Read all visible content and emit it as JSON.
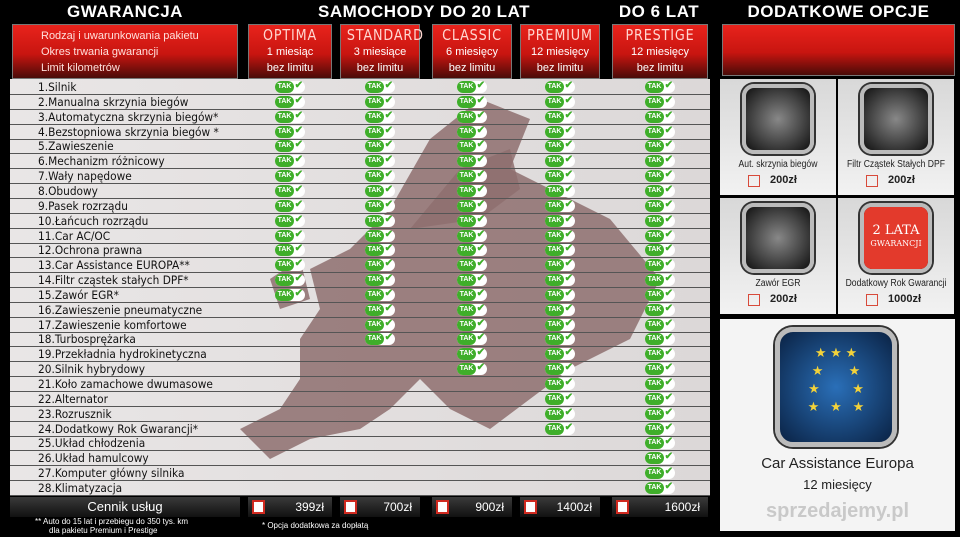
{
  "header": {
    "guarantee": "GWARANCJA",
    "cars20": "SAMOCHODY DO 20 LAT",
    "cars6": "DO 6 LAT",
    "extras": "DODATKOWE OPCJE"
  },
  "legend": [
    "Rodzaj i uwarunkowania pakietu",
    "Okres trwania gwarancji",
    "Limit kilometrów"
  ],
  "plans": [
    {
      "name": "OPTIMA",
      "period": "1 miesiąc",
      "limit": "bez limitu",
      "price": "399zł"
    },
    {
      "name": "STANDARD",
      "period": "3 miesiące",
      "limit": "bez limitu",
      "price": "700zł"
    },
    {
      "name": "CLASSIC",
      "period": "6 miesięcy",
      "limit": "bez limitu",
      "price": "900zł"
    },
    {
      "name": "PREMIUM",
      "period": "12 miesięcy",
      "limit": "bez limitu",
      "price": "1400zł"
    },
    {
      "name": "PRESTIGE",
      "period": "12 miesięcy",
      "limit": "bez limitu",
      "price": "1600zł"
    }
  ],
  "tak_label": "TAK",
  "items": [
    {
      "label": "1.Silnik",
      "cov": [
        1,
        1,
        1,
        1,
        1
      ]
    },
    {
      "label": "2.Manualna skrzynia biegów",
      "cov": [
        1,
        1,
        1,
        1,
        1
      ]
    },
    {
      "label": "3.Automatyczna skrzynia biegów*",
      "cov": [
        1,
        1,
        1,
        1,
        1
      ]
    },
    {
      "label": "4.Bezstopniowa skrzynia biegów *",
      "cov": [
        1,
        1,
        1,
        1,
        1
      ]
    },
    {
      "label": "5.Zawieszenie",
      "cov": [
        1,
        1,
        1,
        1,
        1
      ]
    },
    {
      "label": "6.Mechanizm różnicowy",
      "cov": [
        1,
        1,
        1,
        1,
        1
      ]
    },
    {
      "label": "7.Wały napędowe",
      "cov": [
        1,
        1,
        1,
        1,
        1
      ]
    },
    {
      "label": "8.Obudowy",
      "cov": [
        1,
        1,
        1,
        1,
        1
      ]
    },
    {
      "label": "9.Pasek rozrządu",
      "cov": [
        1,
        1,
        1,
        1,
        1
      ]
    },
    {
      "label": "10.Łańcuch rozrządu",
      "cov": [
        1,
        1,
        1,
        1,
        1
      ]
    },
    {
      "label": "11.Car AC/OC",
      "cov": [
        1,
        1,
        1,
        1,
        1
      ]
    },
    {
      "label": "12.Ochrona prawna",
      "cov": [
        1,
        1,
        1,
        1,
        1
      ]
    },
    {
      "label": "13.Car Assistance EUROPA**",
      "cov": [
        1,
        1,
        1,
        1,
        1
      ]
    },
    {
      "label": "14.Filtr cząstek stałych DPF*",
      "cov": [
        1,
        1,
        1,
        1,
        1
      ]
    },
    {
      "label": "15.Zawór EGR*",
      "cov": [
        1,
        1,
        1,
        1,
        1
      ]
    },
    {
      "label": "16.Zawieszenie pneumatyczne",
      "cov": [
        0,
        1,
        1,
        1,
        1
      ]
    },
    {
      "label": "17.Zawieszenie komfortowe",
      "cov": [
        0,
        1,
        1,
        1,
        1
      ]
    },
    {
      "label": "18.Turbosprężarka",
      "cov": [
        0,
        1,
        1,
        1,
        1
      ]
    },
    {
      "label": "19.Przekładnia hydrokinetyczna",
      "cov": [
        0,
        0,
        1,
        1,
        1
      ]
    },
    {
      "label": "20.Silnik hybrydowy",
      "cov": [
        0,
        0,
        1,
        1,
        1
      ]
    },
    {
      "label": "21.Koło zamachowe dwumasowe",
      "cov": [
        0,
        0,
        0,
        1,
        1
      ]
    },
    {
      "label": "22.Alternator",
      "cov": [
        0,
        0,
        0,
        1,
        1
      ]
    },
    {
      "label": "23.Rozrusznik",
      "cov": [
        0,
        0,
        0,
        1,
        1
      ]
    },
    {
      "label": "24.Dodatkowy Rok Gwarancji*",
      "cov": [
        0,
        0,
        0,
        1,
        1
      ]
    },
    {
      "label": "25.Układ chłodzenia",
      "cov": [
        0,
        0,
        0,
        0,
        1
      ]
    },
    {
      "label": "26.Układ hamulcowy",
      "cov": [
        0,
        0,
        0,
        0,
        1
      ]
    },
    {
      "label": "27.Komputer główny silnika",
      "cov": [
        0,
        0,
        0,
        0,
        1
      ]
    },
    {
      "label": "28.Klimatyzacja",
      "cov": [
        0,
        0,
        0,
        0,
        1
      ]
    }
  ],
  "footer": {
    "price_list": "Cennik usług",
    "note1": "** Auto do 15 lat i przebiegu do 350 tys. km",
    "note2": "dla pakietu Premium i Prestige",
    "note3": "* Opcja dodatkowa za dopłatą"
  },
  "options": [
    {
      "label": "Aut. skrzynia biegów",
      "price": "200zł",
      "icon": "gear-shifter-icon"
    },
    {
      "label": "Filtr Cząstek Stałych DPF",
      "price": "200zł",
      "icon": "dpf-filter-icon"
    },
    {
      "label": "Zawór EGR",
      "price": "200zł",
      "icon": "egr-valve-icon"
    },
    {
      "label": "Dodatkowy Rok Gwarancji",
      "price": "1000zł",
      "icon": "two-year-badge-icon",
      "badge_line1": "2 LATA",
      "badge_line2": "GWARANCJI"
    }
  ],
  "assistance": {
    "title": "Car Assistance Europa",
    "period": "12 miesięcy",
    "icon": "eu-stars-icon"
  },
  "watermark": "sprzedajemy.pl",
  "colors": {
    "accent": "#d9201a",
    "tak": "#3fae2a"
  }
}
